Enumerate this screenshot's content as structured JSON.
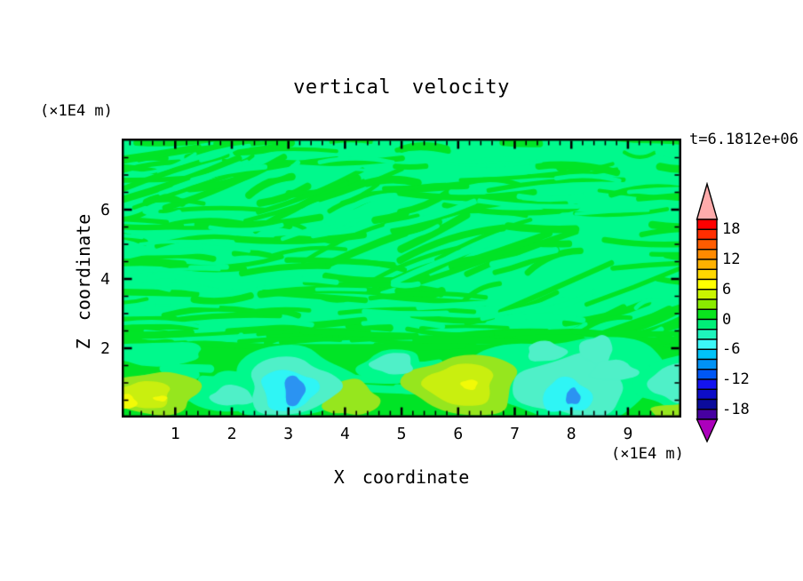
{
  "chart_data": {
    "type": "filled_contour",
    "title": "vertical velocity",
    "time_label": "t=6.1812e+06",
    "xlabel": "X coordinate",
    "ylabel": "Z coordinate",
    "x_units_label": "(×1E4 m)",
    "y_units_label": "(×1E4 m)",
    "x_range": [
      0.06,
      9.94
    ],
    "z_range": [
      0,
      8.05
    ],
    "x_major_ticks": [
      1,
      2,
      3,
      4,
      5,
      6,
      7,
      8,
      9
    ],
    "x_minor_tick_step": 0.2,
    "z_major_ticks": [
      2,
      4,
      6
    ],
    "z_minor_tick_step": 0.5,
    "grid": false,
    "frame_color": "#000000",
    "background_color": "#ffffff",
    "colorbar": {
      "position": "right",
      "tick_labels": [
        "18",
        "12",
        "6",
        "0",
        "-6",
        "-12",
        "-18"
      ],
      "tick_values": [
        18,
        12,
        6,
        0,
        -6,
        -12,
        -18
      ],
      "level_min": -20,
      "level_max": 20,
      "level_step": 2,
      "segment_colors_top_to_bottom": [
        "#ff0000",
        "#ff2e00",
        "#ff5c00",
        "#ff8a00",
        "#ffb100",
        "#ffd800",
        "#ffff00",
        "#c9f500",
        "#8aeb00",
        "#0ae41e",
        "#00ef78",
        "#1ef4bc",
        "#3cf8f8",
        "#00c3f8",
        "#0092f5",
        "#0057f5",
        "#1414f0",
        "#0d0dc8",
        "#0b0b9b",
        "#4600a0"
      ],
      "over_arrow_color": "#ffabab",
      "under_arrow_color": "#ac00bc"
    },
    "field_colors": {
      "spring": "#00f98c",
      "green": "#00e426",
      "chartreuse": "#96e61e",
      "yellowgreen": "#c9ef0f",
      "yellow": "#f2fa07",
      "aqua": "#4ff0c8",
      "cyan": "#2ff5f5",
      "blue": "#2b93f2"
    },
    "field_levels_by_color": {
      "green": [
        0,
        2
      ],
      "spring": [
        -2,
        0
      ],
      "chartreuse": [
        2,
        4
      ],
      "yellowgreen": [
        4,
        6
      ],
      "yellow": [
        6,
        8
      ],
      "aqua": [
        -4,
        -2
      ],
      "cyan": [
        -6,
        -4
      ],
      "blue": [
        -10,
        -8
      ]
    },
    "features": [
      {
        "cx": 0.6,
        "cz": 1.85,
        "rx": 0.95,
        "rz": 0.35,
        "color": "spring"
      },
      {
        "cx": 2.0,
        "cz": 0.7,
        "rx": 0.75,
        "rz": 0.6,
        "color": "spring"
      },
      {
        "cx": 3.05,
        "cz": 1.0,
        "rx": 1.15,
        "rz": 1.05,
        "color": "spring"
      },
      {
        "cx": 4.85,
        "cz": 1.45,
        "rx": 0.6,
        "rz": 0.5,
        "color": "spring"
      },
      {
        "cx": 8.0,
        "cz": 1.15,
        "rx": 1.75,
        "rz": 1.25,
        "color": "spring"
      },
      {
        "cx": 9.85,
        "cz": 1.0,
        "rx": 0.7,
        "rz": 0.8,
        "color": "spring"
      },
      {
        "cx": 0.62,
        "cz": 0.72,
        "rx": 0.85,
        "rz": 0.62,
        "color": "chartreuse"
      },
      {
        "cx": 0.45,
        "cz": 0.66,
        "rx": 0.5,
        "rz": 0.4,
        "color": "yellowgreen"
      },
      {
        "cx": 0.14,
        "cz": 0.45,
        "rx": 0.18,
        "rz": 0.22,
        "color": "yellow"
      },
      {
        "cx": 0.74,
        "cz": 0.55,
        "rx": 0.13,
        "rz": 0.08,
        "color": "yellow"
      },
      {
        "cx": 4.1,
        "cz": 0.55,
        "rx": 0.5,
        "rz": 0.52,
        "color": "chartreuse"
      },
      {
        "cx": 6.1,
        "cz": 0.95,
        "rx": 1.0,
        "rz": 0.88,
        "color": "chartreuse"
      },
      {
        "cx": 6.05,
        "cz": 0.95,
        "rx": 0.62,
        "rz": 0.62,
        "color": "yellowgreen"
      },
      {
        "cx": 6.2,
        "cz": 0.95,
        "rx": 0.15,
        "rz": 0.15,
        "color": "yellow"
      },
      {
        "cx": 9.9,
        "cz": 0.12,
        "rx": 0.48,
        "rz": 0.3,
        "color": "chartreuse"
      },
      {
        "cx": 2.0,
        "cz": 0.62,
        "rx": 0.38,
        "rz": 0.3,
        "color": "aqua"
      },
      {
        "cx": 4.85,
        "cz": 1.55,
        "rx": 0.38,
        "rz": 0.32,
        "color": "aqua"
      },
      {
        "cx": 3.05,
        "cz": 0.9,
        "rx": 0.8,
        "rz": 0.85,
        "color": "aqua"
      },
      {
        "cx": 3.0,
        "cz": 0.8,
        "rx": 0.5,
        "rz": 0.6,
        "color": "cyan"
      },
      {
        "cx": 3.1,
        "cz": 0.78,
        "rx": 0.18,
        "rz": 0.45,
        "color": "blue"
      },
      {
        "cx": 8.0,
        "cz": 0.9,
        "rx": 1.0,
        "rz": 0.9,
        "color": "aqua"
      },
      {
        "cx": 7.55,
        "cz": 1.9,
        "rx": 0.35,
        "rz": 0.3,
        "color": "aqua"
      },
      {
        "cx": 8.45,
        "cz": 1.95,
        "rx": 0.3,
        "rz": 0.42,
        "color": "aqua"
      },
      {
        "cx": 8.75,
        "cz": 1.35,
        "rx": 0.42,
        "rz": 0.3,
        "color": "aqua"
      },
      {
        "cx": 7.92,
        "cz": 0.62,
        "rx": 0.45,
        "rz": 0.5,
        "color": "cyan"
      },
      {
        "cx": 8.03,
        "cz": 0.6,
        "rx": 0.13,
        "rz": 0.24,
        "color": "blue"
      },
      {
        "cx": 9.9,
        "cz": 1.0,
        "rx": 0.5,
        "rz": 0.6,
        "color": "aqua"
      }
    ],
    "texture": {
      "seed": 20240613,
      "upper_green_streaks": 175,
      "upper_spring_streaks": 60,
      "band_top_z": 2.12,
      "band_edge_streaks": 26,
      "band_spring_patches": 16,
      "diagonal_tilt_line": {
        "z_at_x0": 8.4,
        "slope": -0.6,
        "half_width": 1.1
      },
      "note": "weak mottled ±2 streaks aloft; solid updraft band near z≈2; convective cells below"
    },
    "description": "Mostly weak vertical velocity (-2..+2) aloft shown as mottled green streaks; stronger cells below z≈2: updrafts near x≈0.6, 4.1, 6.1 (up to +8) and downdrafts near x≈2.0, 3.1, 8.0, 9.9 (down to -10)."
  }
}
